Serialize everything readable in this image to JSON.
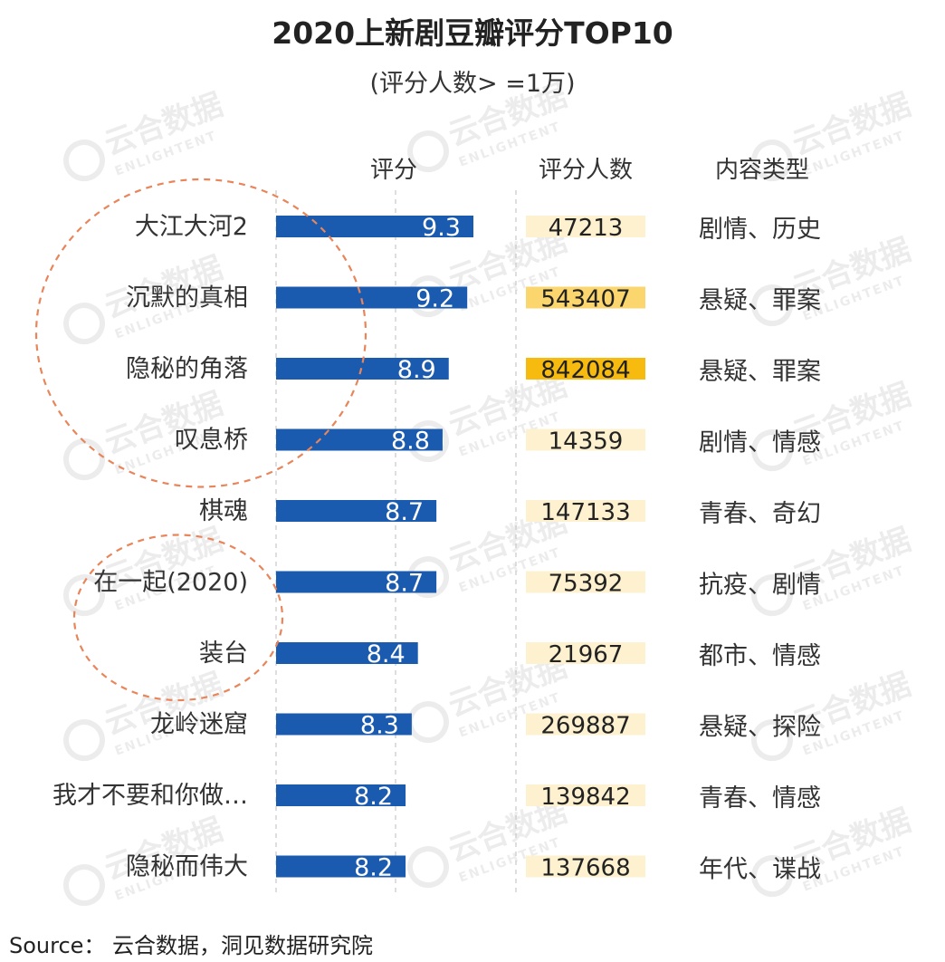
{
  "chart_data": {
    "type": "bar",
    "title": "2020上新剧豆瓣评分TOP10",
    "subtitle": "(评分人数> =1万)",
    "column_headers": {
      "score": "评分",
      "raters": "评分人数",
      "genre": "内容类型"
    },
    "categories": [
      "大江大河2",
      "沉默的真相",
      "隐秘的角落",
      "叹息桥",
      "棋魂",
      "在一起(2020)",
      "装台",
      "龙岭迷窟",
      "我才不要和你做…",
      "隐秘而伟大"
    ],
    "series": [
      {
        "values": [
          9.3,
          9.2,
          8.9,
          8.8,
          8.7,
          8.7,
          8.4,
          8.3,
          8.2,
          8.2
        ]
      }
    ],
    "raters": [
      47213,
      543407,
      842084,
      14359,
      147133,
      75392,
      21967,
      269887,
      139842,
      137668
    ],
    "genres": [
      "剧情、历史",
      "悬疑、罪案",
      "悬疑、罪案",
      "剧情、情感",
      "青春、奇幻",
      "抗疫、剧情",
      "都市、情感",
      "悬疑、探险",
      "青春、情感",
      "年代、谍战"
    ],
    "xlim": [
      6.1,
      9.3
    ],
    "highlight_groups": [
      [
        0,
        3
      ],
      [
        5,
        6
      ]
    ],
    "colors": {
      "bar": "#1a5bb0",
      "bar_label": "#ffffff",
      "raters_light": "#fdf1cf",
      "raters_mid": "#fbd56e",
      "raters_dark": "#f7bb0f",
      "highlight_circle": "#e8855a",
      "divider": "#c8c8c8"
    }
  },
  "watermark": {
    "brand_cn": "云合数据",
    "brand_en": "ENLIGHTENT"
  },
  "source": "Source： 云合数据，洞见数据研究院"
}
